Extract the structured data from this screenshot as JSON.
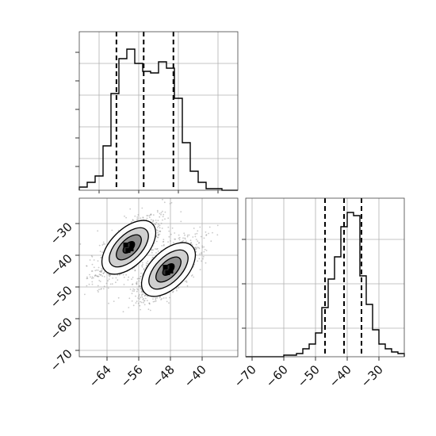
{
  "chart_data": {
    "type": "corner",
    "parameters": [
      "",
      ""
    ],
    "quantiles": {
      "x": [
        -60.5,
        -55.0,
        -49.0
      ],
      "y": [
        -47.0,
        -41.0,
        -35.5
      ]
    },
    "hist_x": {
      "type": "histogram",
      "range": [
        -68.0,
        -36.0
      ],
      "bin_width": 1.6,
      "counts": [
        0.02,
        0.05,
        0.09,
        0.28,
        0.61,
        0.83,
        0.89,
        0.8,
        0.75,
        0.74,
        0.81,
        0.77,
        0.58,
        0.3,
        0.12,
        0.05,
        0.01,
        0.01,
        0.0,
        0.0
      ],
      "yaxis_tick_labels_visible": false
    },
    "hist_y": {
      "type": "histogram",
      "range": [
        -72.0,
        -22.0
      ],
      "bin_width": 2.0,
      "counts": [
        0.0,
        0.0,
        0.0,
        0.0,
        0.0,
        0.0,
        0.01,
        0.01,
        0.02,
        0.05,
        0.08,
        0.15,
        0.31,
        0.49,
        0.63,
        0.82,
        0.91,
        0.89,
        0.51,
        0.33,
        0.17,
        0.08,
        0.05,
        0.03,
        0.02
      ],
      "yaxis_tick_labels_visible": false
    },
    "scatter_2d": {
      "type": "scatter_contour",
      "x_ticks": [
        -64,
        -56,
        -48,
        -40
      ],
      "y_ticks": [
        -30,
        -40,
        -50,
        -60,
        -70
      ],
      "xlim": [
        -71.0,
        -31.0
      ],
      "ylim": [
        -72.0,
        -22.0
      ],
      "clusters": [
        {
          "center": [
            -58.5,
            -37.5
          ],
          "angle_deg": -45
        },
        {
          "center": [
            -48.5,
            -44.5
          ],
          "angle_deg": -45
        }
      ]
    },
    "hist_y_xticks": [
      -70,
      -60,
      -50,
      -40,
      -30
    ],
    "grid": true,
    "colors": {
      "line": "#000000",
      "grid": "#b0b0b0",
      "points": "#888888"
    }
  }
}
